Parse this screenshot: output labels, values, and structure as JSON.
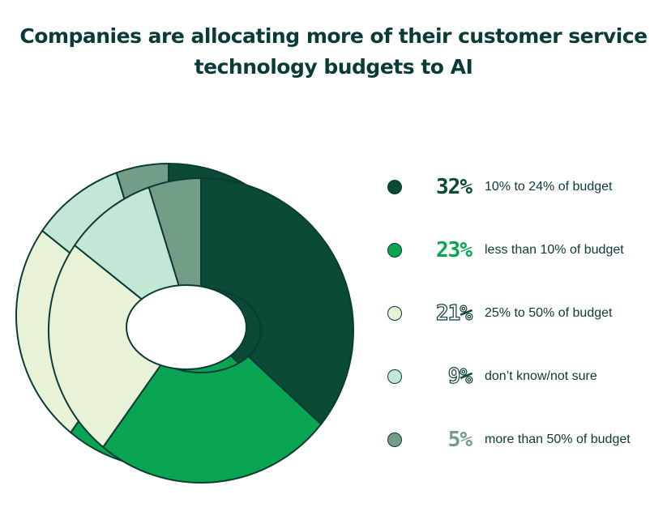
{
  "title_lines": [
    "Companies are allocating more of their customer service",
    "technology budgets to AI"
  ],
  "chart_data": {
    "type": "pie",
    "variant": "3d-donut",
    "title": "Companies are allocating more of their customer service technology budgets to AI",
    "legend_position": "right",
    "slices": [
      {
        "pct_label": "32%",
        "label": "10% to 24% of budget",
        "value": 32,
        "color": "#0b4a34",
        "style": "filled"
      },
      {
        "pct_label": "23%",
        "label": "less than 10% of budget",
        "value": 23,
        "color": "#0aa552",
        "style": "filled"
      },
      {
        "pct_label": "21%",
        "label": "25% to 50% of budget",
        "value": 21,
        "color": "#e8f2d6",
        "style": "outline"
      },
      {
        "pct_label": "9%",
        "label": "don’t know/not sure",
        "value": 9,
        "color": "#c2e7d4",
        "style": "outline"
      },
      {
        "pct_label": "5%",
        "label": "more than 50% of budget",
        "value": 5,
        "color": "#749d87",
        "style": "filled"
      }
    ]
  }
}
